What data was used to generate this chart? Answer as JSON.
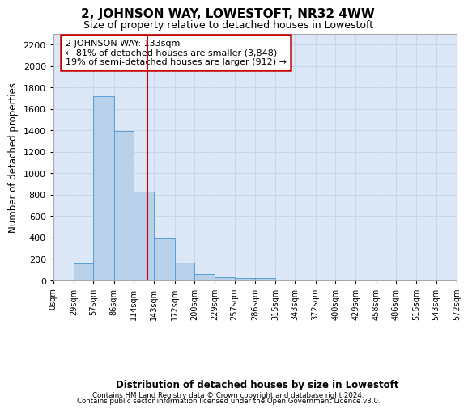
{
  "title": "2, JOHNSON WAY, LOWESTOFT, NR32 4WW",
  "subtitle": "Size of property relative to detached houses in Lowestoft",
  "xlabel": "Distribution of detached houses by size in Lowestoft",
  "ylabel": "Number of detached properties",
  "bin_edges": [
    0,
    29,
    57,
    86,
    114,
    143,
    172,
    200,
    229,
    257,
    286,
    315,
    343,
    372,
    400,
    429,
    458,
    486,
    515,
    543,
    572
  ],
  "bar_heights": [
    10,
    155,
    1720,
    1395,
    830,
    390,
    165,
    60,
    30,
    25,
    25,
    0,
    0,
    0,
    0,
    0,
    0,
    0,
    0,
    0
  ],
  "bar_color": "#b8d0ea",
  "bar_edge_color": "#5a9fd4",
  "ylim_max": 2300,
  "yticks": [
    0,
    200,
    400,
    600,
    800,
    1000,
    1200,
    1400,
    1600,
    1800,
    2000,
    2200
  ],
  "property_sqm": 133,
  "red_line_color": "#cc0000",
  "annotation_line1": "2 JOHNSON WAY: 133sqm",
  "annotation_line2": "← 81% of detached houses are smaller (3,848)",
  "annotation_line3": "19% of semi-detached houses are larger (912) →",
  "grid_color": "#c8d8ec",
  "plot_bg_color": "#dce8f8",
  "fig_bg_color": "#ffffff",
  "footnote1": "Contains HM Land Registry data © Crown copyright and database right 2024.",
  "footnote2": "Contains public sector information licensed under the Open Government Licence v3.0."
}
